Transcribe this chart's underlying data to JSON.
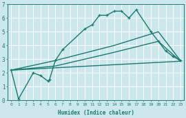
{
  "xlabel": "Humidex (Indice chaleur)",
  "xlim": [
    -0.5,
    23.5
  ],
  "ylim": [
    0,
    7
  ],
  "xticks": [
    0,
    1,
    2,
    3,
    4,
    5,
    6,
    7,
    8,
    9,
    10,
    11,
    12,
    13,
    14,
    15,
    16,
    17,
    18,
    19,
    20,
    21,
    22,
    23
  ],
  "yticks": [
    0,
    1,
    2,
    3,
    4,
    5,
    6,
    7
  ],
  "bg_color": "#cce8ec",
  "line_color": "#1a7a6e",
  "grid_color": "#ffffff",
  "lines": [
    {
      "x": [
        0,
        1,
        3,
        4,
        5,
        5.2,
        6,
        7,
        10,
        11,
        12,
        13,
        14,
        15,
        16,
        17,
        19,
        20,
        21,
        22,
        23
      ],
      "y": [
        2.2,
        0.1,
        2.0,
        1.8,
        1.4,
        1.5,
        2.9,
        3.7,
        5.2,
        5.5,
        6.2,
        6.2,
        6.5,
        6.5,
        6.0,
        6.6,
        5.0,
        4.3,
        3.6,
        3.2,
        2.9
      ],
      "marker": "+",
      "lw": 1.0
    },
    {
      "x": [
        0,
        6,
        14,
        20,
        23
      ],
      "y": [
        2.2,
        2.9,
        4.0,
        5.0,
        2.9
      ],
      "marker": null,
      "lw": 1.0
    },
    {
      "x": [
        0,
        6,
        14,
        20,
        23
      ],
      "y": [
        2.2,
        2.5,
        3.5,
        4.3,
        2.85
      ],
      "marker": null,
      "lw": 1.0
    },
    {
      "x": [
        0,
        23
      ],
      "y": [
        2.2,
        2.85
      ],
      "marker": null,
      "lw": 1.0
    }
  ]
}
